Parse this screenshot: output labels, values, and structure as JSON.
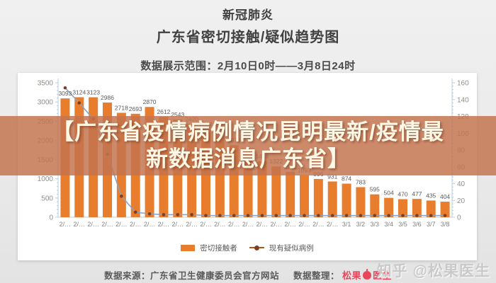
{
  "header": {
    "title_line1": "新冠肺炎",
    "title_line2": "广东省密切接触/疑似趋势图",
    "range_label": "数据展示范围：2月10日0时——3月8日24时"
  },
  "overlay": {
    "line1": "【广东省疫情病例情况昆明最新/疫情最",
    "line2": "新数据消息广东省】"
  },
  "chart_data": {
    "type": "bar",
    "title": "广东省密切接触/疑似趋势图",
    "categories": [
      "2/…",
      "2/…",
      "2/…",
      "2/…",
      "2/…",
      "2/…",
      "2/…",
      "2/…",
      "2/…",
      "2/…",
      "2/…",
      "2/…",
      "2/…",
      "2/…",
      "2/…",
      "2/…",
      "2/…",
      "2/…",
      "2/…",
      "2/…",
      "3/1",
      "3/2",
      "3/3",
      "3/4",
      "3/5",
      "3/6",
      "3/7",
      "3/8"
    ],
    "series": [
      {
        "name": "密切接触者",
        "type": "bar",
        "color": "#e87d2d",
        "axis": "left",
        "values": [
          3093,
          3124,
          3123,
          2986,
          2718,
          2693,
          2870,
          2612,
          2543,
          2420,
          2287,
          2104,
          1876,
          1619,
          1458,
          1322,
          1182,
          1093,
          996,
          931,
          874,
          783,
          595,
          504,
          470,
          477,
          435,
          404
        ]
      },
      {
        "name": "现有疑似病例",
        "type": "line",
        "color": "#8ba1bc",
        "marker_color": "#7d3f1f",
        "axis": "right",
        "values": [
          154,
          136,
          117,
          75,
          25,
          6,
          4,
          3,
          3,
          3,
          2,
          2,
          2,
          2,
          2,
          2,
          2,
          2,
          2,
          2,
          2,
          2,
          2,
          2,
          2,
          2,
          2,
          2
        ]
      }
    ],
    "left_axis": {
      "min": 0,
      "max": 3500,
      "step": 500,
      "minor_step": 100
    },
    "right_axis": {
      "min": 0,
      "max": 160,
      "step": 20,
      "minor_step": 4
    },
    "grid": false,
    "legend_position": "bottom",
    "axis_color": "#b7cde2",
    "axis_label_color": "#8f8f88",
    "bar_label_color": "#5a5a5a"
  },
  "footer": {
    "source_label": "数据来源：广东省卫生健康委员会官方网站",
    "compile_label": "数据整理：",
    "logo_text_1": "松果",
    "logo_text_2": "医生",
    "logo_icon": "apple-icon"
  },
  "watermark": {
    "text": "知乎 @松果医生"
  }
}
